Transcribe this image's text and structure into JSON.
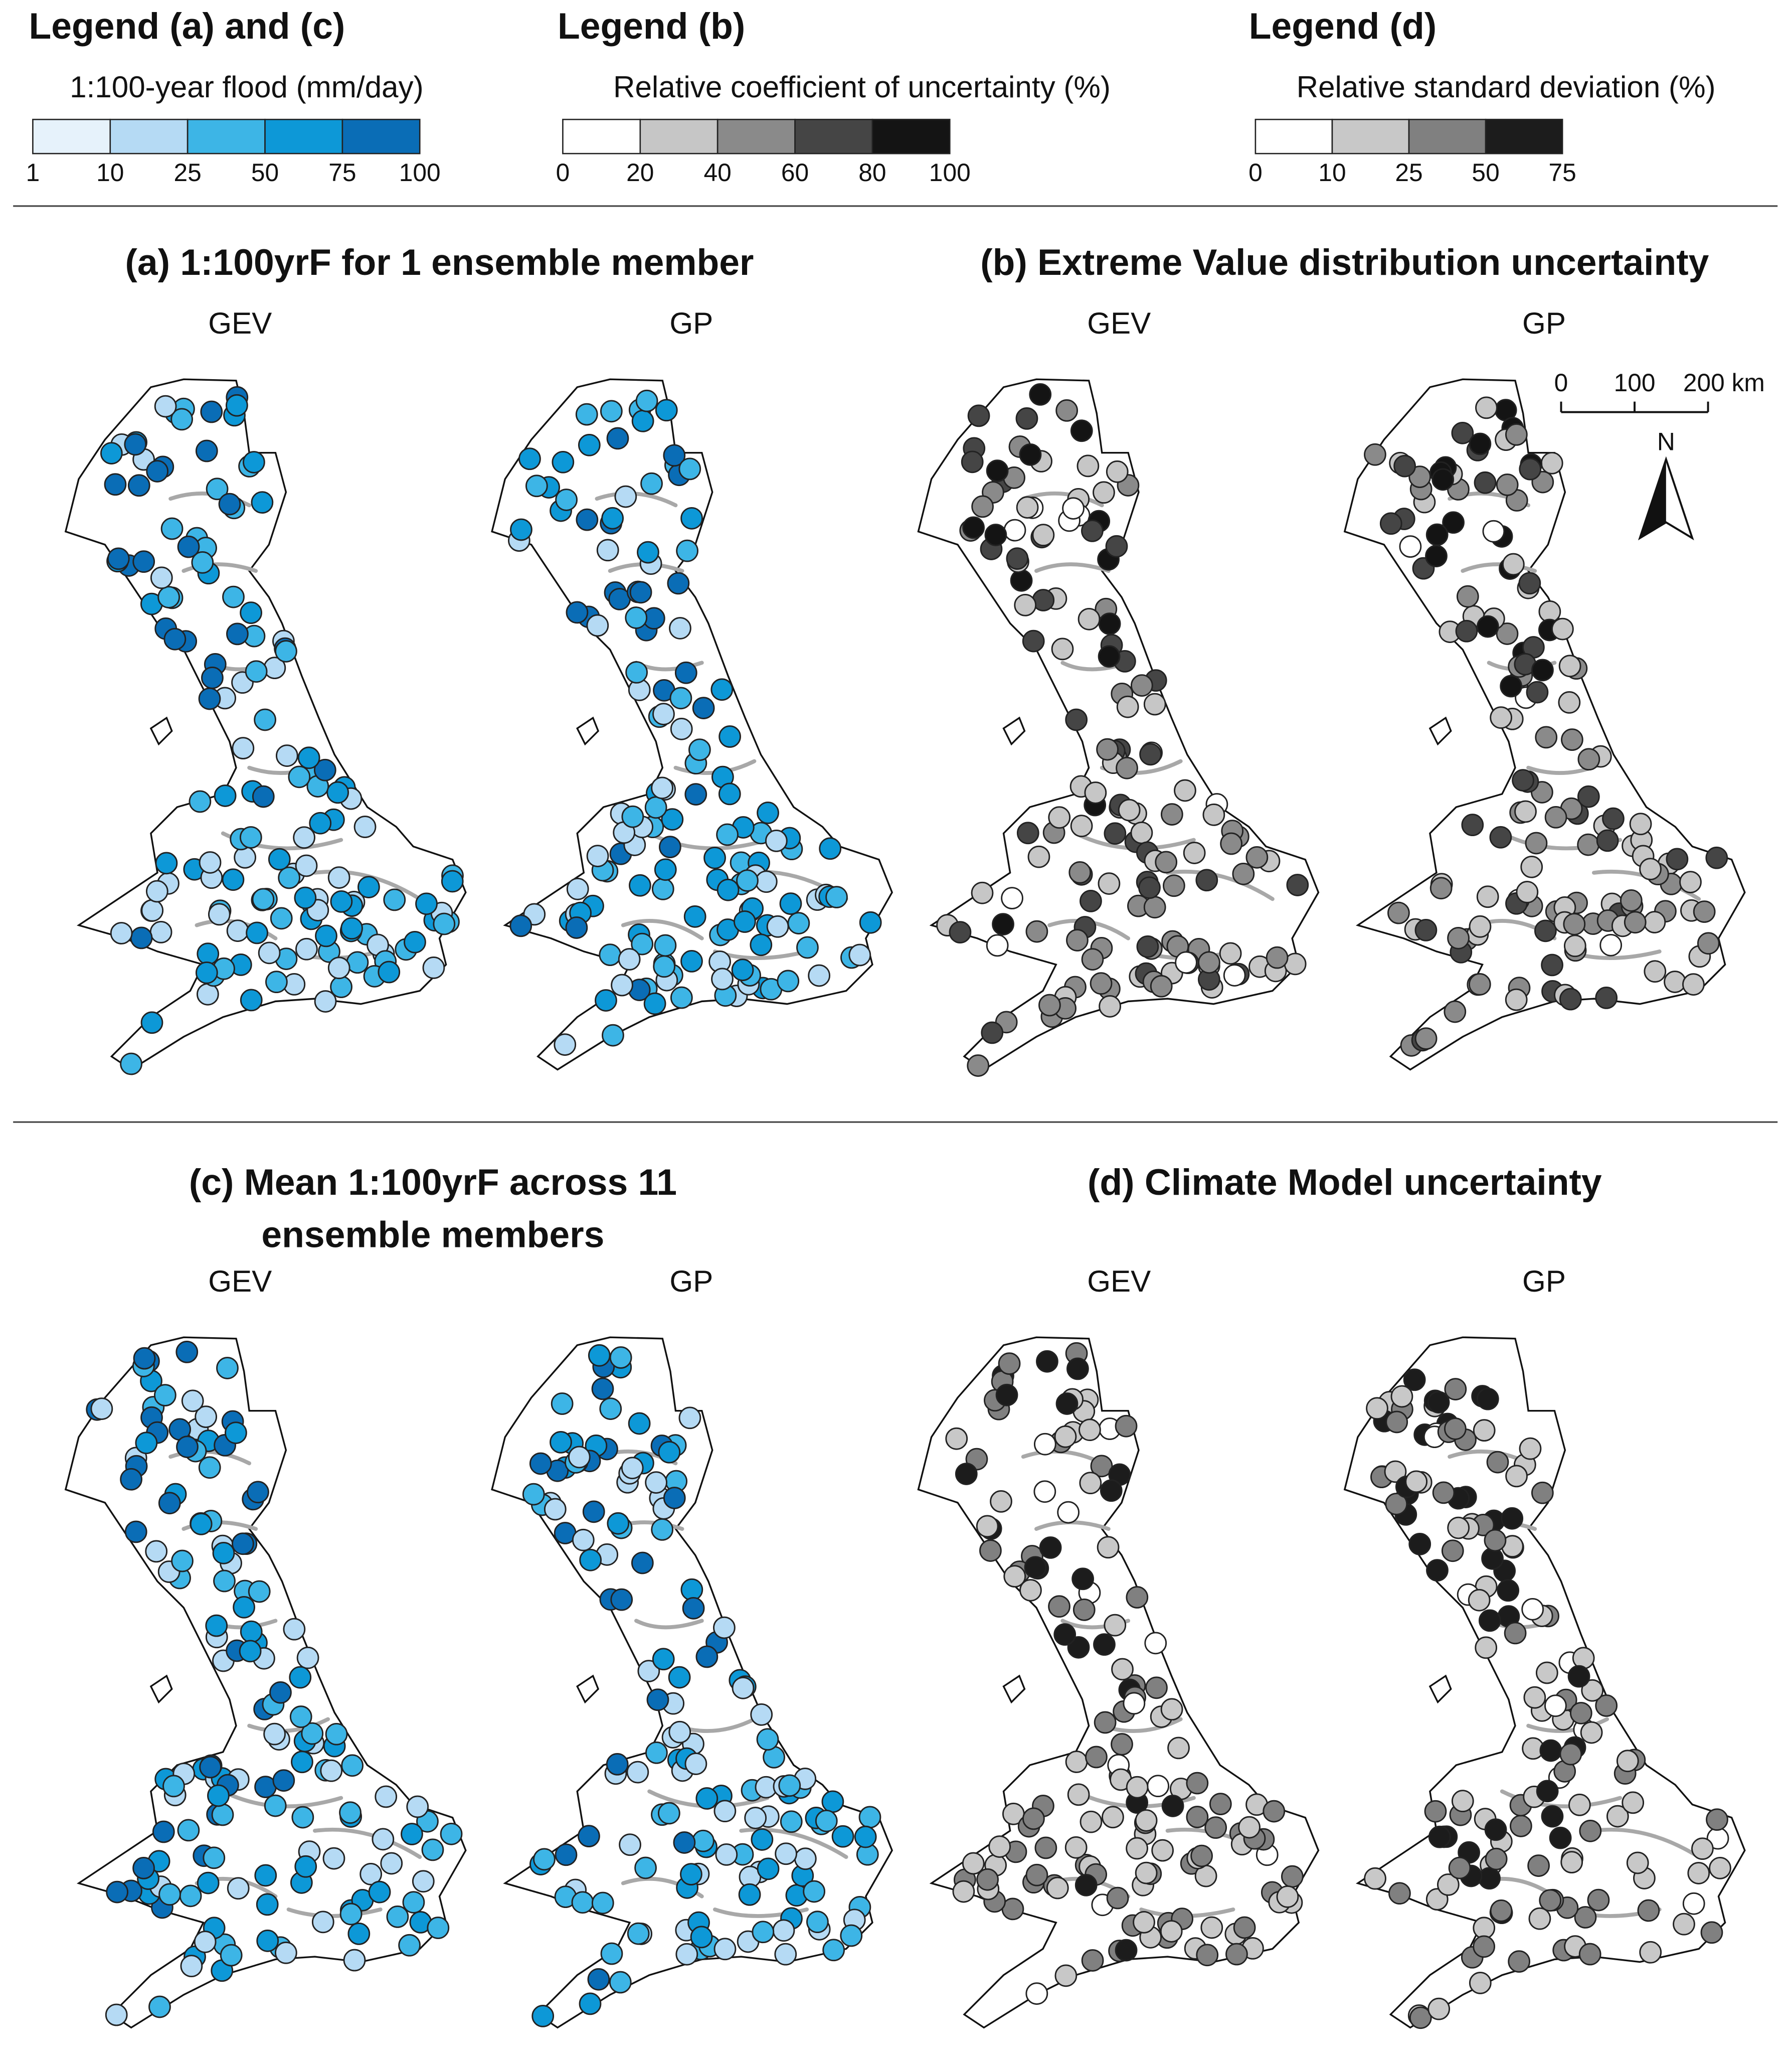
{
  "legends": [
    {
      "title": "Legend (a) and (c)",
      "subtitle": "1:100-year flood (mm/day)",
      "ticks": [
        1,
        10,
        25,
        50,
        75,
        100
      ],
      "colors": [
        "#e6f2fb",
        "#b5daf4",
        "#3db5e6",
        "#0d98d7",
        "#0a6db6"
      ]
    },
    {
      "title": "Legend (b)",
      "subtitle": "Relative coefficient of uncertainty (%)",
      "ticks": [
        0,
        20,
        40,
        60,
        80,
        100
      ],
      "colors": [
        "#ffffff",
        "#c6c6c6",
        "#8a8a8a",
        "#454545",
        "#141414"
      ]
    },
    {
      "title": "Legend (d)",
      "subtitle": "Relative standard deviation (%)",
      "ticks": [
        0,
        10,
        25,
        50,
        75
      ],
      "colors": [
        "#ffffff",
        "#c8c8c8",
        "#808080",
        "#1c1c1c"
      ]
    }
  ],
  "panels": [
    {
      "title": "(a) 1:100yrF for 1 ensemble member",
      "maps": [
        "GEV",
        "GP"
      ]
    },
    {
      "title": "(b) Extreme Value distribution uncertainty",
      "maps": [
        "GEV",
        "GP"
      ]
    },
    {
      "title": [
        "(c) Mean 1:100yrF across 11",
        "ensemble members"
      ],
      "maps": [
        "GEV",
        "GP"
      ]
    },
    {
      "title": "(d) Climate Model uncertainty",
      "maps": [
        "GEV",
        "GP"
      ]
    }
  ],
  "scale_bar": {
    "ticks": [
      0,
      100,
      {
        "value": 200,
        "label": "200 km"
      }
    ]
  },
  "north": "N"
}
